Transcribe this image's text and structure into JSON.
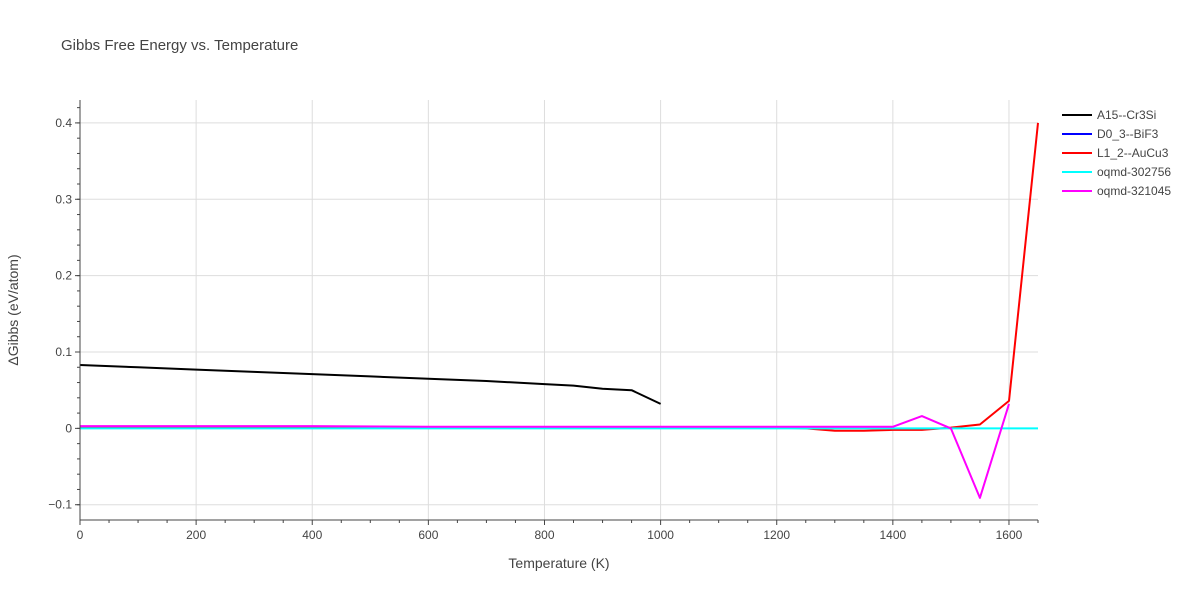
{
  "chart_data": {
    "type": "line",
    "title": "Gibbs Free Energy vs. Temperature",
    "xlabel": "Temperature (K)",
    "ylabel": "ΔGibbs (eV/atom)",
    "xlim": [
      0,
      1650
    ],
    "ylim": [
      -0.12,
      0.43
    ],
    "xticks": [
      0,
      200,
      400,
      600,
      800,
      1000,
      1200,
      1400,
      1600
    ],
    "yticks": [
      -0.1,
      0,
      0.1,
      0.2,
      0.3,
      0.4
    ],
    "ytick_labels": [
      "−0.1",
      "0",
      "0.1",
      "0.2",
      "0.3",
      "0.4"
    ],
    "grid": true,
    "legend_position": "top-right",
    "series": [
      {
        "name": "A15--Cr3Si",
        "color": "#000000",
        "x": [
          0,
          100,
          200,
          300,
          400,
          500,
          600,
          700,
          800,
          850,
          900,
          950,
          1000
        ],
        "y": [
          0.083,
          0.08,
          0.077,
          0.074,
          0.071,
          0.068,
          0.065,
          0.062,
          0.058,
          0.056,
          0.052,
          0.05,
          0.032
        ]
      },
      {
        "name": "D0_3--BiF3",
        "color": "#0000ff",
        "x": [
          0,
          200,
          400,
          600,
          800,
          1000,
          1200,
          1250
        ],
        "y": [
          0.002,
          0.002,
          0.002,
          0.001,
          0.001,
          0.001,
          0.001,
          0.001
        ]
      },
      {
        "name": "L1_2--AuCu3",
        "color": "#ff0000",
        "x": [
          0,
          200,
          400,
          600,
          800,
          1000,
          1200,
          1250,
          1300,
          1350,
          1400,
          1450,
          1500,
          1550,
          1600,
          1650
        ],
        "y": [
          0.002,
          0.002,
          0.002,
          0.001,
          0.001,
          0.001,
          0.001,
          0.0,
          -0.003,
          -0.003,
          -0.002,
          -0.002,
          0.001,
          0.005,
          0.036,
          0.4
        ]
      },
      {
        "name": "oqmd-302756",
        "color": "#00ffff",
        "x": [
          0,
          200,
          400,
          600,
          800,
          1000,
          1200,
          1400,
          1600,
          1650
        ],
        "y": [
          0.0,
          0.0,
          0.0,
          0.0,
          0.0,
          0.0,
          0.0,
          0.0,
          0.0,
          0.0
        ]
      },
      {
        "name": "oqmd-321045",
        "color": "#ff00ff",
        "x": [
          0,
          200,
          400,
          600,
          800,
          1000,
          1200,
          1400,
          1450,
          1500,
          1550,
          1600
        ],
        "y": [
          0.003,
          0.003,
          0.003,
          0.002,
          0.002,
          0.002,
          0.002,
          0.002,
          0.016,
          0.0,
          -0.091,
          0.032
        ]
      }
    ]
  }
}
